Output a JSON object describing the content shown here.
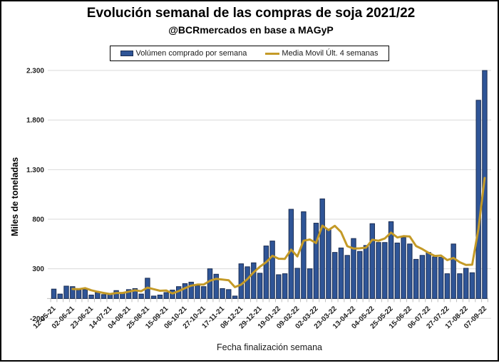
{
  "title": "Evolución semanal de las compras de soja 2021/22",
  "subtitle": "@BCRmercados en base a MAGyP",
  "legend": {
    "bar_label": "Volúmen comprado por semana",
    "line_label": "Media Movil Últ. 4 semanas"
  },
  "colors": {
    "bar_fill": "#2F5597",
    "bar_border": "#1b2d52",
    "ma_line": "#C49A27",
    "gridline": "#D9D9D9",
    "axis": "#BFBFBF"
  },
  "chart_data": {
    "type": "bar",
    "title": "Evolución semanal de las compras de soja 2021/22",
    "subtitle": "@BCRmercados en base a MAGyP",
    "xlabel": "Fecha finalización semana",
    "ylabel": "Miles de toneladas",
    "ylim": [
      -200,
      2300
    ],
    "grid": true,
    "legend_position": "top-center",
    "n_weeks": 70,
    "label_interval": 3,
    "categories": [
      "12-05-21",
      "02-06-21",
      "23-06-21",
      "14-07-21",
      "04-08-21",
      "25-08-21",
      "15-09-21",
      "06-10-21",
      "27-10-21",
      "17-11-21",
      "08-12-21",
      "29-12-21",
      "19-01-22",
      "09-02-22",
      "02-03-22",
      "23-03-22",
      "13-04-22",
      "04-05-22",
      "25-05-22",
      "15-06-22",
      "06-07-22",
      "27-07-22",
      "17-08-22",
      "07-09-22"
    ],
    "yticks": [
      {
        "value": 2300,
        "label": "2.300"
      },
      {
        "value": 1800,
        "label": "1.800"
      },
      {
        "value": 1300,
        "label": "1.300"
      },
      {
        "value": 800,
        "label": "800"
      },
      {
        "value": 300,
        "label": "300"
      },
      {
        "value": -200,
        "label": "-200"
      }
    ],
    "series": [
      {
        "name": "Volúmen comprado por semana",
        "type": "bar",
        "color": "#2F5597",
        "values": [
          95,
          45,
          125,
          120,
          85,
          90,
          35,
          60,
          40,
          45,
          80,
          60,
          90,
          100,
          45,
          205,
          25,
          35,
          60,
          85,
          120,
          150,
          165,
          130,
          120,
          300,
          245,
          100,
          90,
          25,
          350,
          320,
          360,
          255,
          530,
          580,
          240,
          250,
          900,
          305,
          875,
          300,
          760,
          1005,
          700,
          465,
          510,
          435,
          605,
          475,
          535,
          755,
          565,
          565,
          775,
          560,
          615,
          550,
          395,
          435,
          465,
          420,
          415,
          250,
          550,
          250,
          305,
          260,
          2000,
          2300
        ]
      },
      {
        "name": "Media Movil Últ. 4 semanas",
        "type": "line",
        "color": "#C49A27",
        "start_index": 3,
        "values": [
          96,
          94,
          105,
          83,
          68,
          56,
          45,
          56,
          56,
          69,
          83,
          74,
          110,
          94,
          78,
          81,
          51,
          75,
          104,
          130,
          141,
          141,
          179,
          199,
          191,
          184,
          115,
          141,
          196,
          264,
          321,
          366,
          431,
          401,
          400,
          493,
          424,
          583,
          595,
          560,
          735,
          691,
          733,
          670,
          528,
          504,
          506,
          513,
          593,
          583,
          605,
          665,
          616,
          629,
          625,
          530,
          499,
          461,
          429,
          434,
          388,
          409,
          366,
          339,
          341,
          704,
          1216
        ]
      }
    ]
  }
}
